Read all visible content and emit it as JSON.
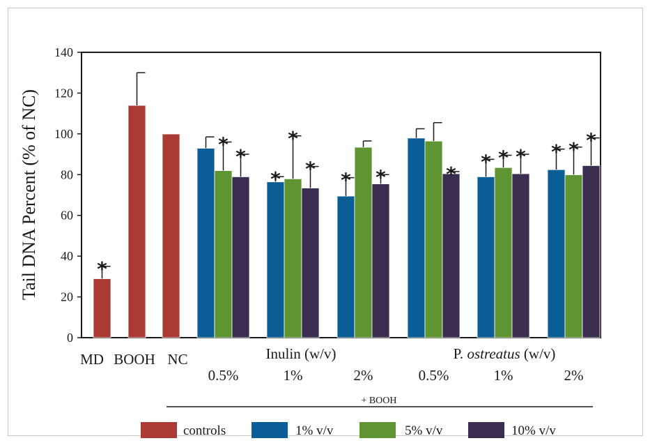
{
  "chart_data": {
    "type": "bar",
    "ylabel": "Tail DNA Percent (% of NC)",
    "ylim": [
      0,
      140
    ],
    "yticks": [
      0,
      20,
      40,
      60,
      80,
      100,
      120,
      140
    ],
    "controls": [
      {
        "label": "MD",
        "value": 29,
        "error": 6,
        "sig": true
      },
      {
        "label": "BOOH",
        "value": 114,
        "error": 16,
        "sig": false
      },
      {
        "label": "NC",
        "value": 100,
        "error": 0,
        "sig": false
      }
    ],
    "group_titles": [
      {
        "text_plain": "Inulin (w/v)",
        "text_prefix": "",
        "text_italic": "",
        "text_suffix": ""
      },
      {
        "text_plain": "",
        "text_prefix": "P. ",
        "text_italic": "ostreatus",
        "text_suffix": " (w/v)"
      }
    ],
    "groups": [
      {
        "label": "0.5%",
        "values": [
          93,
          82,
          79
        ],
        "errors": [
          5.5,
          14,
          11
        ],
        "sig": [
          false,
          true,
          true
        ]
      },
      {
        "label": "1%",
        "values": [
          76.5,
          78,
          73.5
        ],
        "errors": [
          2.5,
          21,
          10.5
        ],
        "sig": [
          true,
          true,
          true
        ]
      },
      {
        "label": "2%",
        "values": [
          69.5,
          93.5,
          75.5
        ],
        "errors": [
          9,
          3,
          4.5
        ],
        "sig": [
          true,
          false,
          true
        ]
      },
      {
        "label": "0.5%",
        "values": [
          98,
          96.5,
          80.5
        ],
        "errors": [
          4.5,
          9,
          1
        ],
        "sig": [
          false,
          false,
          true
        ]
      },
      {
        "label": "1%",
        "values": [
          79,
          83.5,
          80.5
        ],
        "errors": [
          8.5,
          6,
          9.5
        ],
        "sig": [
          true,
          true,
          true
        ]
      },
      {
        "label": "2%",
        "values": [
          82.5,
          80,
          84.5
        ],
        "errors": [
          10,
          13.5,
          13.5
        ],
        "sig": [
          true,
          true,
          true
        ]
      }
    ],
    "bracket_label": "+ BOOH",
    "star_symbol": "*",
    "legend": [
      {
        "name": "controls",
        "color": "#ab3a35"
      },
      {
        "name": "1% v/v",
        "color": "#0b5d95"
      },
      {
        "name": "5% v/v",
        "color": "#5e9532"
      },
      {
        "name": "10% v/v",
        "color": "#3b2d4f"
      }
    ],
    "legend_placement": "bottom",
    "grid": false
  }
}
